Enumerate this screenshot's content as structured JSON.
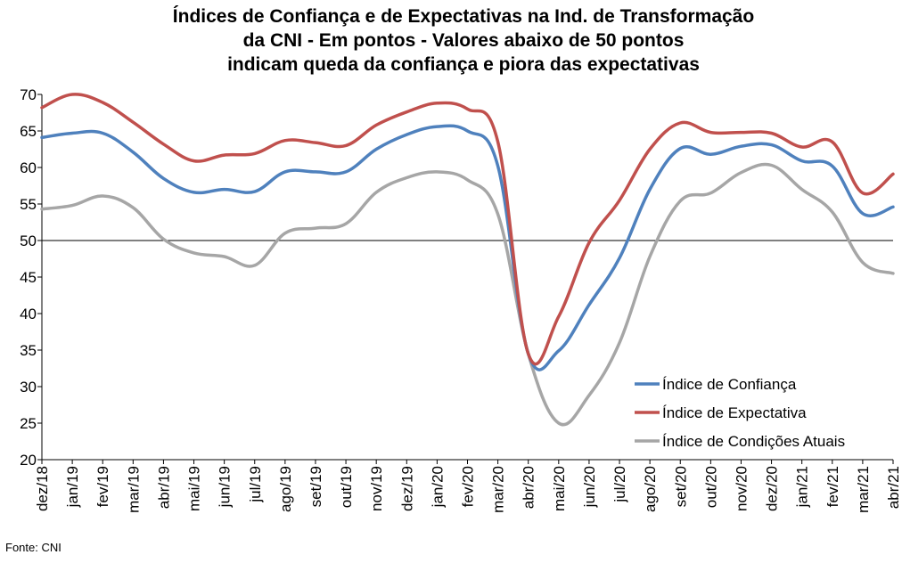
{
  "chart_data": {
    "type": "line",
    "title_lines": [
      "Índices de Confiança e de Expectativas na Ind. de Transformação",
      "da CNI - Em pontos - Valores abaixo de 50 pontos",
      "indicam queda da confiança e piora das expectativas"
    ],
    "categories": [
      "dez/18",
      "jan/19",
      "fev/19",
      "mar/19",
      "abr/19",
      "mai/19",
      "jun/19",
      "jul/19",
      "ago/19",
      "set/19",
      "out/19",
      "nov/19",
      "dez/19",
      "jan/20",
      "fev/20",
      "mar/20",
      "abr/20",
      "mai/20",
      "jun/20",
      "jul/20",
      "ago/20",
      "set/20",
      "out/20",
      "nov/20",
      "dez/20",
      "jan/21",
      "fev/21",
      "mar/21",
      "abr/21"
    ],
    "y_ticks": [
      "70",
      "65",
      "60",
      "55",
      "50",
      "45",
      "40",
      "35",
      "30",
      "25",
      "20"
    ],
    "ylim": [
      20,
      70
    ],
    "reference_line": 50,
    "grid": false,
    "legend_position": "bottom-right",
    "series": [
      {
        "name": "Índice de Confiança",
        "color": "#4F81BD",
        "values": [
          64.1,
          64.7,
          64.7,
          62.1,
          58.5,
          56.6,
          57.0,
          56.7,
          59.4,
          59.4,
          59.4,
          62.5,
          64.5,
          65.6,
          65.0,
          60.2,
          34.5,
          34.9,
          41.2,
          47.6,
          57.0,
          62.6,
          61.8,
          62.9,
          63.1,
          60.9,
          60.2,
          53.7,
          54.6
        ]
      },
      {
        "name": "Índice de Expectativa",
        "color": "#C0504D",
        "values": [
          68.2,
          70.0,
          68.9,
          66.2,
          63.2,
          60.9,
          61.7,
          61.9,
          63.7,
          63.4,
          63.0,
          65.8,
          67.6,
          68.8,
          68.0,
          63.5,
          34.5,
          39.6,
          49.7,
          55.5,
          62.5,
          66.1,
          64.8,
          64.8,
          64.7,
          62.8,
          63.5,
          56.5,
          59.1
        ]
      },
      {
        "name": "Índice de Condições Atuais",
        "color": "#A6A6A6",
        "values": [
          54.3,
          54.8,
          56.1,
          54.5,
          50.2,
          48.3,
          47.8,
          46.6,
          51.0,
          51.7,
          52.3,
          56.6,
          58.6,
          59.4,
          58.3,
          53.6,
          34.5,
          25.0,
          28.8,
          36.0,
          47.8,
          55.4,
          56.5,
          59.3,
          60.3,
          57.0,
          53.9,
          47.0,
          45.5
        ]
      }
    ]
  },
  "source": "Fonte: CNI"
}
